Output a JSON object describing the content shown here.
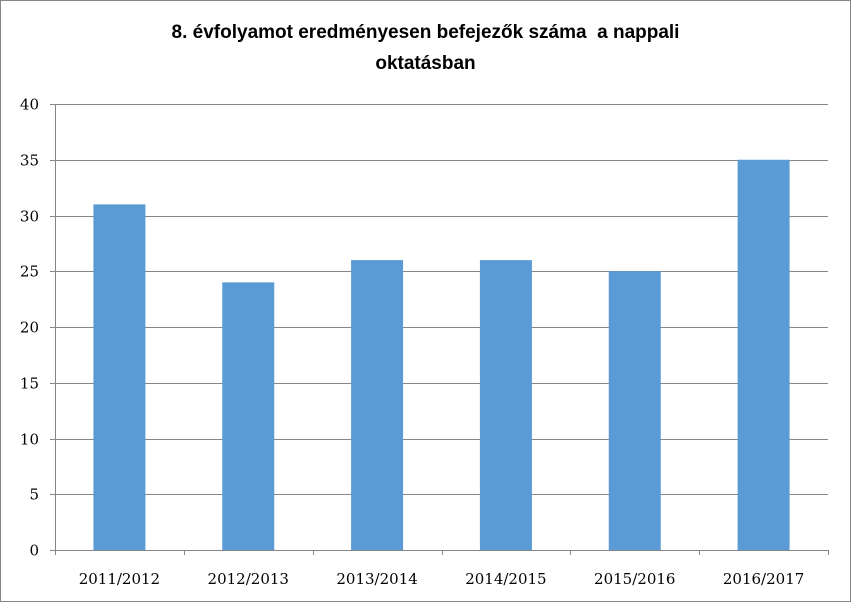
{
  "chart_data": {
    "type": "bar",
    "title": "8. évfolyamot eredményesen befejezők száma  a nappali oktatásban",
    "title_lines": [
      "8. évfolyamot eredményesen befejezők száma  a nappali",
      "oktatásban"
    ],
    "categories": [
      "2011/2012",
      "2012/2013",
      "2013/2014",
      "2014/2015",
      "2015/2016",
      "2016/2017"
    ],
    "values": [
      31,
      24,
      26,
      26,
      25,
      35
    ],
    "xlabel": "",
    "ylabel": "",
    "ylim": [
      0,
      40
    ],
    "yticks": [
      "0",
      "5",
      "10",
      "15",
      "20",
      "25",
      "30",
      "35",
      "40"
    ],
    "grid": true,
    "legend": "none",
    "bar_color": "#5b9bd5",
    "grid_color": "#868686",
    "axis_color": "#868686"
  }
}
